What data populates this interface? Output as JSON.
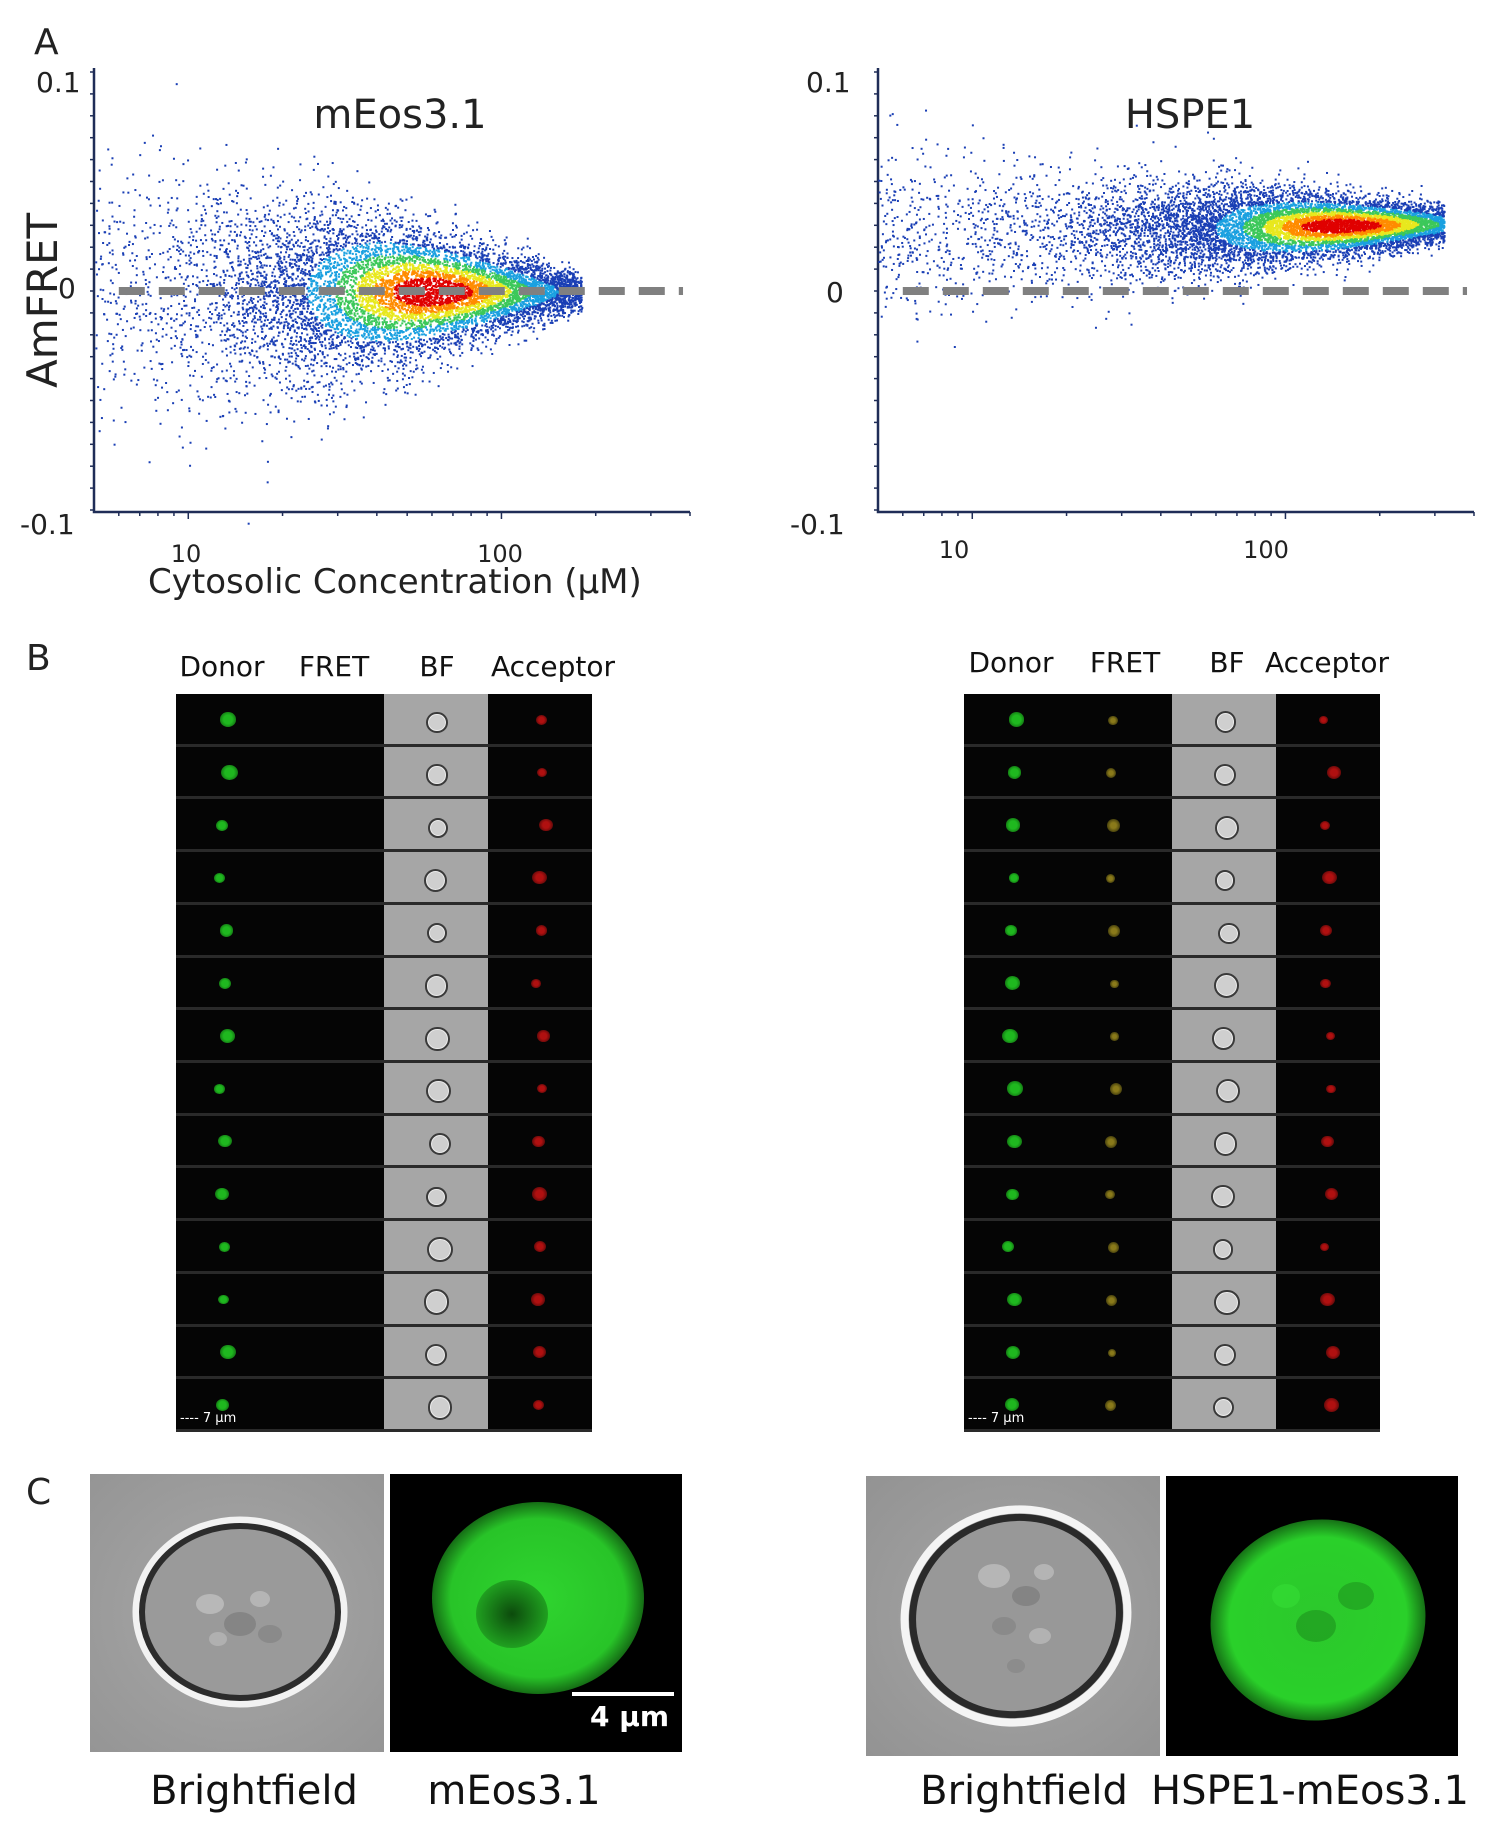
{
  "panels": {
    "a_label": "A",
    "b_label": "B",
    "c_label": "C"
  },
  "chart_data": [
    {
      "type": "scatter",
      "title": "mEos3.1",
      "xlabel": "Cytosolic Concentration (µM)",
      "ylabel": "AmFRET",
      "x_scale": "log",
      "xlim": [
        5,
        400
      ],
      "ylim": [
        -0.1,
        0.1
      ],
      "x_ticks": [
        "10",
        "100"
      ],
      "y_ticks": [
        "0.1",
        "0",
        "-0.1"
      ],
      "reference_line": {
        "y": 0,
        "style": "dashed",
        "color": "#808080"
      },
      "density_colormap": [
        "#1a3fb5",
        "#1aa0e0",
        "#3cc85a",
        "#e8e81e",
        "#ff8c00",
        "#e00000"
      ],
      "distribution": {
        "x_range": [
          5,
          180
        ],
        "center_y": 0.0,
        "spread_low_x": 0.035,
        "spread_high_x": 0.004,
        "peak_x": 60
      }
    },
    {
      "type": "scatter",
      "title": "HSPE1",
      "xlabel": "",
      "ylabel": "",
      "x_scale": "log",
      "xlim": [
        5,
        400
      ],
      "ylim": [
        -0.1,
        0.1
      ],
      "x_ticks": [
        "10",
        "100"
      ],
      "y_ticks": [
        "0.1",
        "0",
        "-0.1"
      ],
      "reference_line": {
        "y": 0,
        "style": "dashed",
        "color": "#808080"
      },
      "density_colormap": [
        "#1a3fb5",
        "#1aa0e0",
        "#3cc85a",
        "#e8e81e",
        "#ff8c00",
        "#e00000"
      ],
      "distribution": {
        "x_range": [
          5,
          320
        ],
        "center_y_low": 0.026,
        "center_y_high": 0.031,
        "spread_low_x": 0.02,
        "spread_high_x": 0.004,
        "peak_x": 150
      }
    }
  ],
  "imaging_left": {
    "columns": [
      "Donor",
      "FRET",
      "BF",
      "Acceptor"
    ],
    "rows": 14,
    "scale_label": "7 µm",
    "fret_visible": false
  },
  "imaging_right": {
    "columns": [
      "Donor",
      "FRET",
      "BF",
      "Acceptor"
    ],
    "rows": 14,
    "scale_label": "7 µm",
    "fret_visible": true
  },
  "micrographs": {
    "left_bf_label": "Brightfield",
    "left_fl_label": "mEos3.1",
    "right_bf_label": "Brightfield",
    "right_fl_label": "HSPE1-mEos3.1",
    "scalebar_label": "4 µm"
  },
  "colors": {
    "donor": "#1fb81f",
    "fret": "#8a7a1a",
    "acceptor": "#b01010",
    "axis": "#1f2d57"
  }
}
